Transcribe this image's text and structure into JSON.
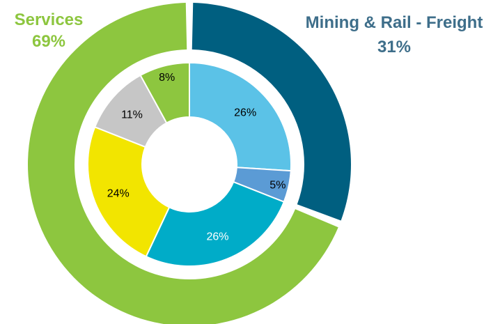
{
  "chart_data": {
    "type": "pie",
    "outer_ring": [
      {
        "name": "Mining & Rail - Freight",
        "value": 31,
        "label": "31%",
        "color": "#005f80"
      },
      {
        "name": "Services",
        "value": 69,
        "label": "69%",
        "color": "#8dc63f"
      }
    ],
    "inner_ring": [
      {
        "value": 26,
        "label": "26%",
        "color": "#5bc2e7"
      },
      {
        "value": 5,
        "label": "5%",
        "color": "#5b9bd5"
      },
      {
        "value": 26,
        "label": "26%",
        "color": "#00acc8"
      },
      {
        "value": 24,
        "label": "24%",
        "color": "#f2e500"
      },
      {
        "value": 11,
        "label": "11%",
        "color": "#c6c6c6"
      },
      {
        "value": 8,
        "label": "8%",
        "color": "#8dc63f"
      }
    ],
    "colors": {
      "mining_label": "#3e6e8a",
      "services_label": "#8dc63f",
      "inner_label_dark": "#000000",
      "inner_label_light": "#ffffff"
    }
  }
}
